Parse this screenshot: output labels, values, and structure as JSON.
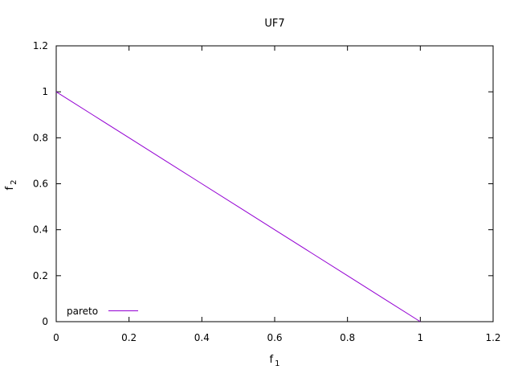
{
  "chart_data": {
    "type": "line",
    "title": "UF7",
    "xlabel": {
      "base": "f",
      "sub": "1"
    },
    "ylabel": {
      "base": "f",
      "sub": "2"
    },
    "xlim": [
      0,
      1.2
    ],
    "ylim": [
      0,
      1.2
    ],
    "xticks": [
      0,
      0.2,
      0.4,
      0.6,
      0.8,
      1,
      1.2
    ],
    "yticks": [
      0,
      0.2,
      0.4,
      0.6,
      0.8,
      1,
      1.2
    ],
    "grid": false,
    "legend_position": "bottom-left",
    "series": [
      {
        "name": "pareto",
        "color": "#9400d3",
        "x": [
          0,
          0.1,
          0.2,
          0.3,
          0.4,
          0.5,
          0.6,
          0.7,
          0.8,
          0.9,
          1
        ],
        "y": [
          1,
          0.9,
          0.8,
          0.7,
          0.6,
          0.5,
          0.4,
          0.3,
          0.2,
          0.1,
          0
        ]
      }
    ]
  }
}
